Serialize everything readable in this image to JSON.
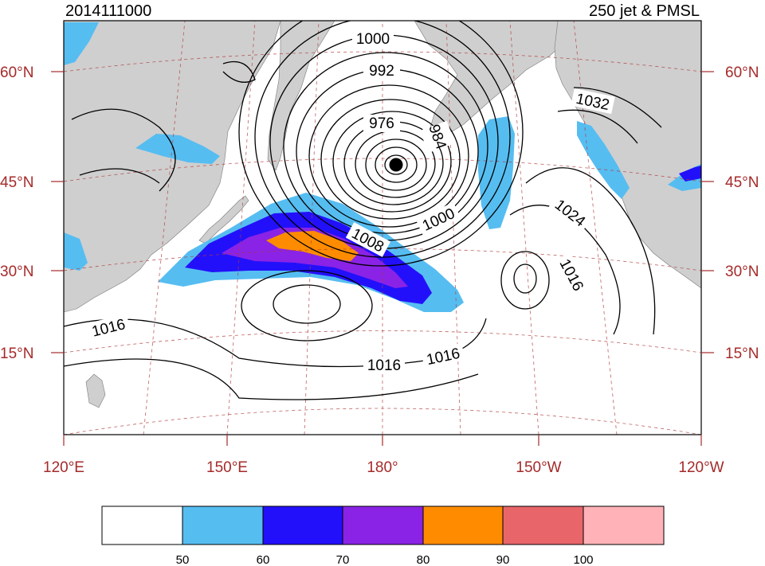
{
  "figure": {
    "datetime": "2014111000",
    "title_right": "250 jet & PMSL"
  },
  "lat_labels": [
    "60°N",
    "45°N",
    "30°N",
    "15°N"
  ],
  "lon_labels": [
    "120°E",
    "150°E",
    "180°",
    "150°W",
    "120°W"
  ],
  "isobar_labels": [
    "1000",
    "992",
    "976",
    "984",
    "1000",
    "1008",
    "1024",
    "1032",
    "1016",
    "1016",
    "1016",
    "1016"
  ],
  "colorbar": {
    "colors": [
      "#ffffff",
      "#56bdf1",
      "#2310fa",
      "#8a23e6",
      "#ff8c00",
      "#e8666a",
      "#ffb3b8"
    ],
    "tick_labels": [
      "50",
      "60",
      "70",
      "80",
      "90",
      "100"
    ]
  },
  "colors": {
    "axis_label": "#a52a2a",
    "land": "#cfcfcf",
    "jet_50": "#56bdf1",
    "jet_60": "#2310fa",
    "jet_70": "#8a23e6",
    "jet_80": "#ff8c00"
  }
}
